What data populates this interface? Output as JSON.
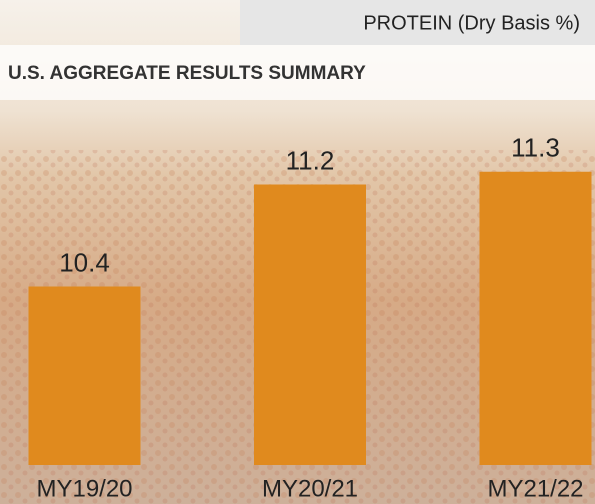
{
  "chart_data": {
    "type": "bar",
    "title": "PROTEIN (Dry Basis %)",
    "subtitle": "U.S. AGGREGATE RESULTS SUMMARY",
    "categories": [
      "MY19/20",
      "MY20/21",
      "MY21/22"
    ],
    "values": [
      10.4,
      11.2,
      11.3
    ],
    "color": "#e08a1e",
    "ylim": [
      9,
      12
    ]
  }
}
